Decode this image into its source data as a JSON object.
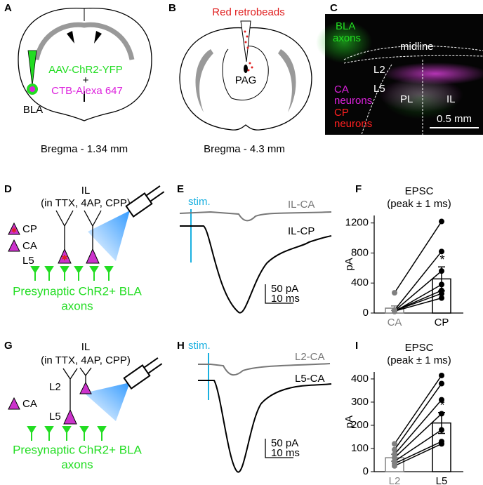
{
  "panels": {
    "A": {
      "label": "A",
      "virus": "AAV-ChR2-YFP",
      "plus": "+",
      "tracer": "CTB-Alexa 647",
      "region": "BLA",
      "bregma": "Bregma - 1.34 mm"
    },
    "B": {
      "label": "B",
      "tracer": "Red retrobeads",
      "region": "PAG",
      "bregma": "Bregma - 4.3 mm"
    },
    "C": {
      "label": "C",
      "bla": "BLA",
      "bla_axons": "axons",
      "midline": "midline",
      "l2": "L2",
      "l5": "L5",
      "ca": "CA",
      "ca_neurons": "neurons",
      "cp": "CP",
      "cp_neurons": "neurons",
      "pl": "PL",
      "il": "IL",
      "scale": "0.5 mm"
    },
    "D": {
      "label": "D",
      "region": "IL",
      "conditions": "(in TTX, 4AP, CPP)",
      "legend": [
        "CP",
        "CA"
      ],
      "layer": "L5",
      "axons_line1": "Presynaptic ChR2+ BLA",
      "axons_line2": "axons"
    },
    "E": {
      "label": "E",
      "stim": "stim.",
      "trace_top": "IL-CA",
      "trace_bottom": "IL-CP",
      "scale_y": "50 pA",
      "scale_x": "10 ms"
    },
    "G": {
      "label": "G",
      "region": "IL",
      "conditions": "(in TTX, 4AP, CPP)",
      "legend": [
        "CA"
      ],
      "layer_top": "L2",
      "layer_bottom": "L5",
      "axons_line1": "Presynaptic ChR2+ BLA",
      "axons_line2": "axons"
    },
    "H": {
      "label": "H",
      "stim": "stim.",
      "trace_top": "L2-CA",
      "trace_bottom": "L5-CA",
      "scale_y": "50 pA",
      "scale_x": "10 ms"
    }
  },
  "chart_data": [
    {
      "type": "bar",
      "label": "F",
      "title": "EPSC",
      "subtitle": "(peak ± 1 ms)",
      "y_label": "pA",
      "categories": [
        "CA",
        "CP"
      ],
      "colors": [
        "#808080",
        "#000000"
      ],
      "values": [
        65,
        455
      ],
      "errors": [
        30,
        160
      ],
      "pairs": [
        [
          270,
          1220
        ],
        [
          40,
          820
        ],
        [
          30,
          560
        ],
        [
          20,
          380
        ],
        [
          30,
          300
        ],
        [
          30,
          260
        ],
        [
          25,
          200
        ]
      ],
      "annotation": "*",
      "ylim": [
        0,
        1300
      ],
      "yticks": [
        0,
        400,
        800,
        1200
      ]
    },
    {
      "type": "bar",
      "label": "I",
      "title": "EPSC",
      "subtitle": "(peak ± 1 ms)",
      "y_label": "pA",
      "categories": [
        "L2",
        "L5"
      ],
      "colors": [
        "#808080",
        "#000000"
      ],
      "values": [
        60,
        210
      ],
      "errors": [
        15,
        45
      ],
      "pairs": [
        [
          120,
          415
        ],
        [
          95,
          380
        ],
        [
          75,
          310
        ],
        [
          60,
          250
        ],
        [
          45,
          180
        ],
        [
          35,
          130
        ],
        [
          25,
          120
        ]
      ],
      "annotation": "*",
      "ylim": [
        0,
        430
      ],
      "yticks": [
        0,
        100,
        200,
        300,
        400
      ]
    }
  ]
}
